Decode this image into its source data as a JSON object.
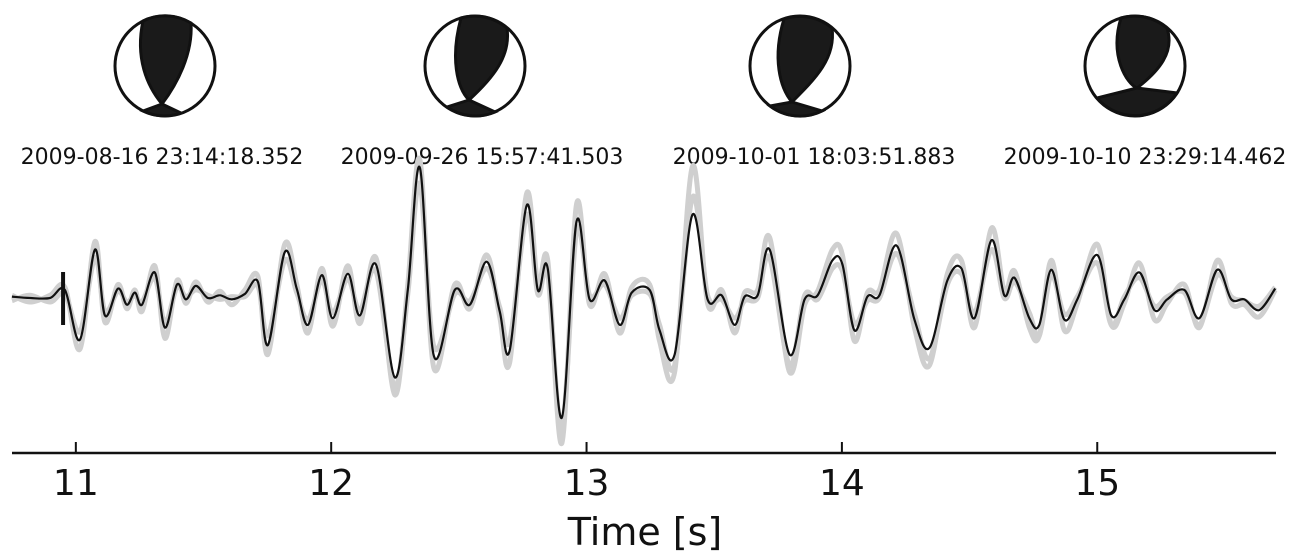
{
  "chart_data": {
    "type": "line",
    "xlabel": "Time [s]",
    "annotations": [
      "2009-08-16 23:14:18.352",
      "2009-09-26 15:57:41.503",
      "2009-10-01 18:03:51.883",
      "2009-10-10 23:29:14.462"
    ],
    "xlim": [
      10.75,
      15.7
    ],
    "xticks": [
      11,
      12,
      13,
      14,
      15
    ],
    "ylim": [
      -1.1,
      1.1
    ],
    "pick_time": 10.95,
    "x": [
      10.75,
      10.82,
      10.899,
      10.957,
      11.016,
      11.075,
      11.114,
      11.165,
      11.2,
      11.231,
      11.259,
      11.309,
      11.349,
      11.396,
      11.431,
      11.47,
      11.517,
      11.564,
      11.611,
      11.662,
      11.713,
      11.752,
      11.818,
      11.865,
      11.909,
      11.963,
      12.006,
      12.065,
      12.112,
      12.175,
      12.249,
      12.3,
      12.347,
      12.402,
      12.484,
      12.543,
      12.609,
      12.66,
      12.699,
      12.766,
      12.809,
      12.848,
      12.903,
      12.961,
      13.012,
      13.071,
      13.13,
      13.177,
      13.247,
      13.286,
      13.345,
      13.415,
      13.474,
      13.529,
      13.58,
      13.619,
      13.67,
      13.717,
      13.795,
      13.854,
      13.905,
      13.963,
      14.002,
      14.049,
      14.1,
      14.147,
      14.214,
      14.284,
      14.343,
      14.413,
      14.468,
      14.519,
      14.586,
      14.636,
      14.676,
      14.734,
      14.773,
      14.82,
      14.871,
      14.922,
      15.0,
      15.055,
      15.106,
      15.165,
      15.224,
      15.274,
      15.341,
      15.4,
      15.47,
      15.525,
      15.576,
      15.634,
      15.697
    ],
    "series": [
      {
        "color": "#cfcfcf",
        "values": [
          0.02,
          -0.03,
          0.02,
          0.08,
          -0.38,
          0.42,
          -0.18,
          0.1,
          -0.08,
          0.06,
          -0.1,
          0.24,
          -0.3,
          0.13,
          -0.04,
          0.12,
          -0.03,
          0.05,
          -0.05,
          0.06,
          0.16,
          -0.42,
          0.4,
          0.1,
          -0.26,
          0.22,
          -0.21,
          0.24,
          -0.19,
          0.3,
          -0.72,
          0.1,
          1.03,
          -0.52,
          0.1,
          -0.08,
          0.32,
          -0.14,
          -0.48,
          0.78,
          0.1,
          0.28,
          -1.08,
          0.7,
          -0.05,
          0.18,
          -0.26,
          0.08,
          0.1,
          -0.32,
          -0.55,
          0.98,
          -0.04,
          0.06,
          -0.26,
          0.04,
          0.06,
          0.45,
          -0.55,
          -0.05,
          0.05,
          0.36,
          0.32,
          -0.32,
          0.04,
          0.06,
          0.48,
          -0.22,
          -0.5,
          0.18,
          0.28,
          -0.22,
          0.52,
          0.05,
          0.2,
          -0.22,
          -0.28,
          0.28,
          -0.24,
          -0.04,
          0.4,
          -0.2,
          -0.04,
          0.26,
          -0.16,
          -0.04,
          0.1,
          -0.22,
          0.28,
          -0.04,
          -0.05,
          -0.14,
          0.06
        ]
      },
      {
        "color": "#cfcfcf",
        "values": [
          -0.02,
          0.02,
          -0.03,
          0.03,
          -0.25,
          0.3,
          -0.1,
          0.05,
          -0.03,
          0.02,
          -0.03,
          0.15,
          -0.18,
          0.08,
          0.01,
          0.06,
          0.02,
          -0.01,
          0.01,
          0.01,
          0.09,
          -0.28,
          0.28,
          0.04,
          -0.16,
          0.13,
          -0.11,
          0.14,
          -0.09,
          0.2,
          -0.66,
          0.03,
          0.85,
          -0.36,
          0.03,
          -0.02,
          0.22,
          -0.07,
          -0.32,
          0.62,
          0.03,
          0.18,
          -0.98,
          0.5,
          0.02,
          0.1,
          -0.15,
          0.02,
          0.03,
          -0.2,
          -0.5,
          0.75,
          0.02,
          -0.01,
          -0.15,
          -0.02,
          0.0,
          0.3,
          -0.5,
          0.02,
          -0.01,
          0.22,
          0.2,
          -0.19,
          -0.02,
          0.0,
          0.33,
          -0.12,
          -0.45,
          0.1,
          0.18,
          -0.11,
          0.36,
          0.0,
          0.12,
          -0.11,
          -0.28,
          0.17,
          -0.12,
          0.01,
          0.26,
          -0.2,
          0.01,
          0.15,
          -0.06,
          0.01,
          0.04,
          -0.2,
          0.17,
          0.01,
          -0.02,
          -0.06,
          0.08
        ]
      },
      {
        "color": "#111111",
        "values": [
          0.01,
          0,
          0,
          0.06,
          -0.31,
          0.36,
          -0.13,
          0.07,
          -0.05,
          0.04,
          -0.05,
          0.19,
          -0.22,
          0.1,
          -0.01,
          0.09,
          0,
          0.02,
          -0.01,
          0.03,
          0.12,
          -0.35,
          0.34,
          0.07,
          -0.2,
          0.17,
          -0.15,
          0.18,
          -0.13,
          0.25,
          -0.59,
          0.06,
          0.97,
          -0.43,
          0.06,
          -0.05,
          0.27,
          -0.1,
          -0.39,
          0.69,
          0.06,
          0.22,
          -0.89,
          0.57,
          -0.01,
          0.13,
          -0.2,
          0.04,
          0.06,
          -0.24,
          -0.42,
          0.62,
          -0.01,
          0.02,
          -0.2,
          0.01,
          0.02,
          0.36,
          -0.42,
          -0.01,
          0.02,
          0.28,
          0.25,
          -0.24,
          0.01,
          0.02,
          0.39,
          -0.16,
          -0.37,
          0.13,
          0.22,
          -0.15,
          0.43,
          0.02,
          0.15,
          -0.15,
          -0.2,
          0.21,
          -0.16,
          -0.01,
          0.32,
          -0.13,
          -0.01,
          0.19,
          -0.09,
          -0.01,
          0.06,
          -0.15,
          0.21,
          -0.01,
          -0.01,
          -0.09,
          0.07
        ]
      }
    ]
  }
}
